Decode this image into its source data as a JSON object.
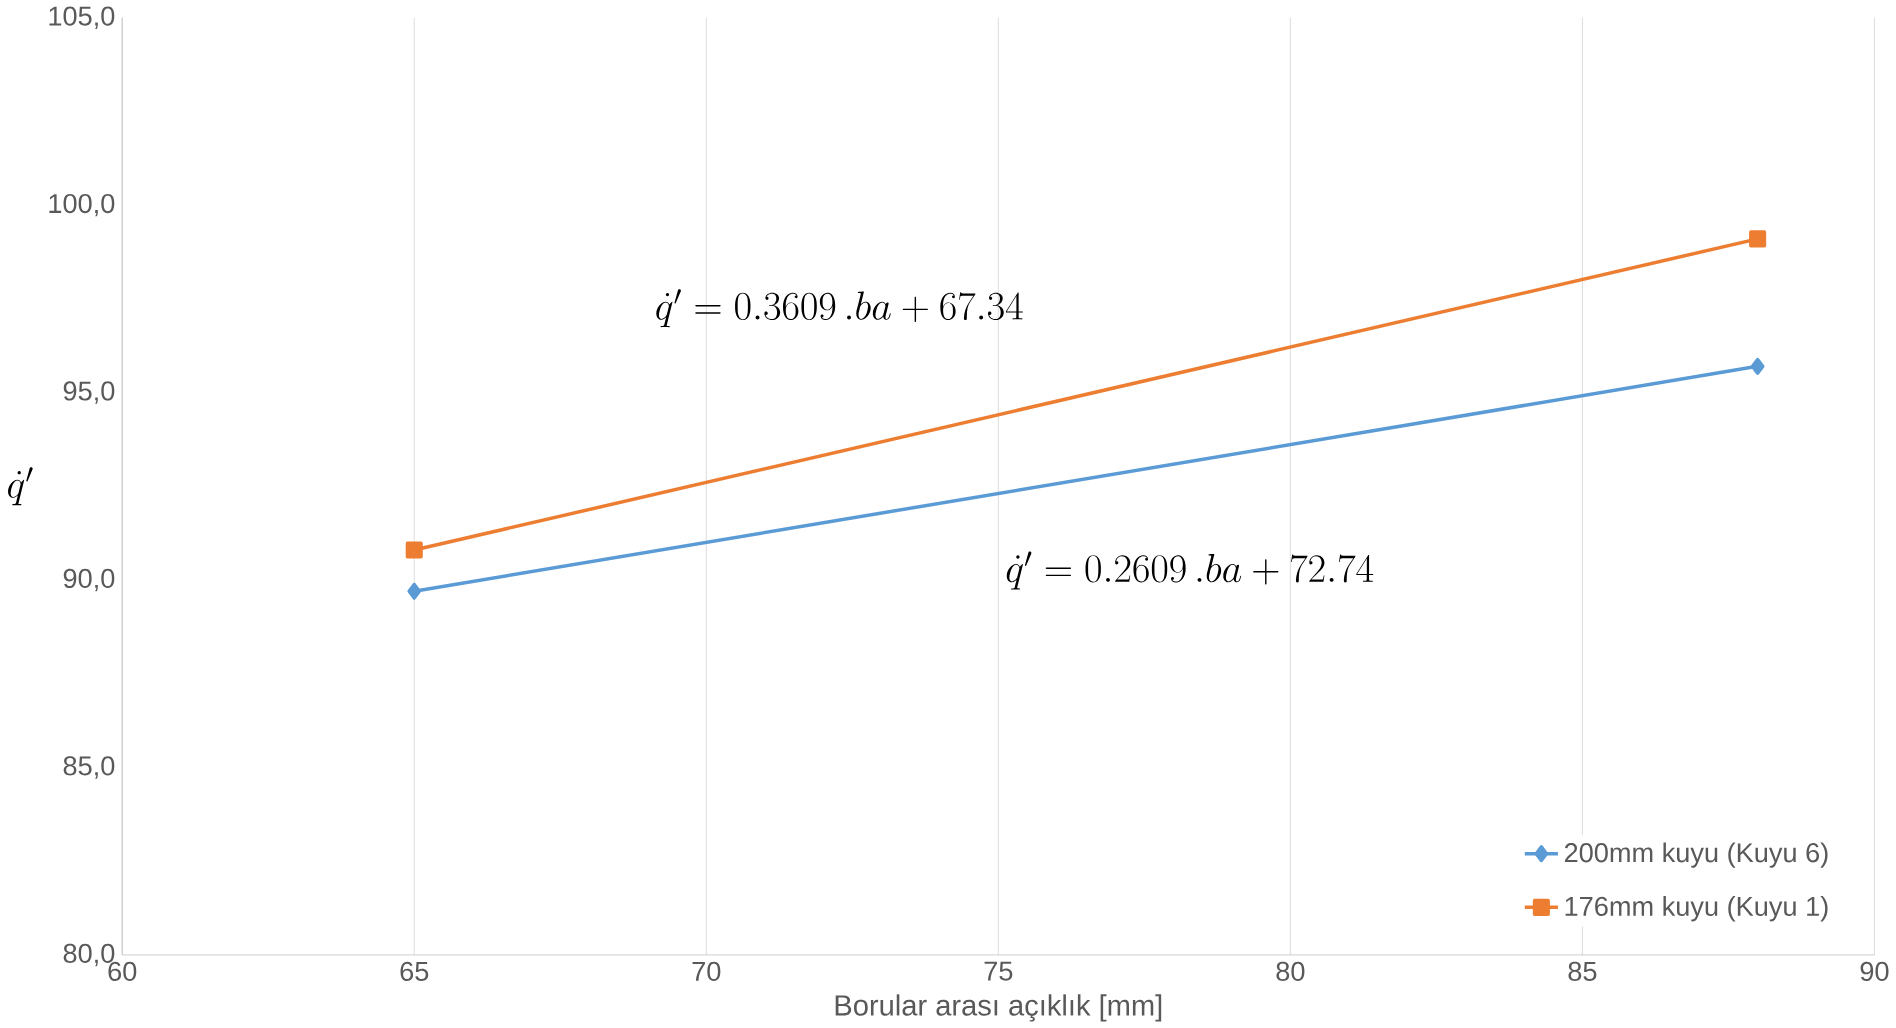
{
  "chart_data": {
    "type": "line",
    "xlabel": "Borular arası açıklık [mm]",
    "ylabel": "\\dot{q}'",
    "x": [
      65,
      88
    ],
    "series": [
      {
        "name": "200mm kuyu (Kuyu 6)",
        "color": "#5b9bd5",
        "marker": "diamond",
        "values": [
          89.7,
          95.7
        ]
      },
      {
        "name": "176mm kuyu (Kuyu 1)",
        "color": "#ed7d31",
        "marker": "square",
        "values": [
          90.8,
          99.1
        ]
      }
    ],
    "xlim": [
      60,
      90
    ],
    "xticks": [
      60,
      65,
      70,
      75,
      80,
      85,
      90
    ],
    "ylim": [
      80,
      105
    ],
    "yticks": [
      {
        "value": 80,
        "label": "80,0"
      },
      {
        "value": 85,
        "label": "85,0"
      },
      {
        "value": 90,
        "label": "90,0"
      },
      {
        "value": 95,
        "label": "95,0"
      },
      {
        "value": 100,
        "label": "100,0"
      },
      {
        "value": 105,
        "label": "105,0"
      }
    ],
    "grid": "x",
    "legend": "bottom right",
    "annotations": [
      "\\dot{q}' = 0.3609\\,.ba + 67.34",
      "\\dot{q}' = 0.2609\\,.ba + 72.74"
    ]
  }
}
